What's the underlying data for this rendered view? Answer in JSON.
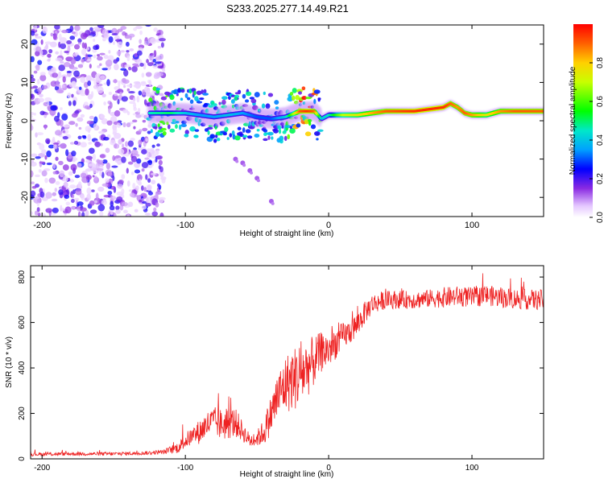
{
  "title": "S233.2025.277.14.49.R21",
  "chart_data": [
    {
      "type": "heatmap",
      "title": "S233.2025.277.14.49.R21",
      "xlabel": "Height of straight line (km)",
      "ylabel": "Frequency (Hz)",
      "xlim": [
        -208,
        150
      ],
      "ylim": [
        -25,
        25
      ],
      "xticks": [
        -200,
        -100,
        0,
        100
      ],
      "yticks": [
        -20,
        -10,
        0,
        10,
        20
      ],
      "colorbar": {
        "label": "Normalized spectral amplitude",
        "range": [
          0,
          1
        ],
        "ticks": [
          0.0,
          0.2,
          0.4,
          0.6,
          0.8
        ]
      },
      "ridge": {
        "x": [
          -125,
          -110,
          -100,
          -90,
          -80,
          -70,
          -60,
          -50,
          -40,
          -30,
          -20,
          -15,
          -10,
          -5,
          0,
          10,
          20,
          40,
          60,
          80,
          85,
          90,
          95,
          100,
          110,
          120,
          130,
          150
        ],
        "freq": [
          2,
          2,
          2,
          1.5,
          1,
          1.5,
          2,
          1,
          0.5,
          1,
          2.5,
          2.5,
          2.5,
          0.5,
          1.5,
          1.5,
          1.5,
          2.5,
          2.5,
          3.5,
          4.5,
          3.5,
          2,
          1.5,
          1.5,
          2.5,
          2.5,
          2.5
        ],
        "amplitude": [
          0.45,
          0.5,
          0.4,
          0.35,
          0.35,
          0.4,
          0.35,
          0.3,
          0.3,
          0.4,
          0.9,
          0.95,
          0.9,
          0.4,
          0.45,
          0.7,
          0.75,
          0.9,
          0.95,
          0.95,
          0.9,
          0.85,
          0.9,
          0.85,
          0.75,
          0.85,
          0.9,
          0.9
        ]
      },
      "noise_region_x": [
        -208,
        -115
      ],
      "scatter_trail": {
        "x": [
          -65,
          -60,
          -55,
          -50,
          -40
        ],
        "freq": [
          -10,
          -11,
          -13,
          -15,
          -21
        ]
      }
    },
    {
      "type": "line",
      "xlabel": "Height of straight line (km)",
      "ylabel": "SNR (10 * v/v)",
      "xlim": [
        -208,
        150
      ],
      "ylim": [
        0,
        850
      ],
      "xticks": [
        -200,
        -100,
        0,
        100
      ],
      "yticks": [
        0,
        200,
        400,
        600,
        800
      ],
      "color": "#ee2222",
      "series": [
        {
          "name": "SNR",
          "x": [
            -208,
            -180,
            -150,
            -130,
            -115,
            -105,
            -100,
            -95,
            -90,
            -85,
            -80,
            -75,
            -70,
            -65,
            -60,
            -55,
            -50,
            -45,
            -40,
            -35,
            -30,
            -25,
            -20,
            -15,
            -10,
            -5,
            0,
            5,
            10,
            15,
            20,
            25,
            30,
            40,
            50,
            60,
            70,
            80,
            90,
            100,
            110,
            120,
            130,
            140,
            150
          ],
          "values": [
            20,
            22,
            22,
            25,
            30,
            50,
            80,
            100,
            120,
            150,
            165,
            150,
            155,
            160,
            120,
            80,
            90,
            120,
            200,
            280,
            330,
            350,
            370,
            400,
            430,
            470,
            480,
            510,
            540,
            560,
            590,
            640,
            680,
            700,
            700,
            700,
            705,
            710,
            715,
            710,
            720,
            710,
            705,
            700,
            700
          ],
          "noise_amplitude": [
            8,
            8,
            8,
            8,
            10,
            25,
            35,
            40,
            55,
            60,
            65,
            70,
            70,
            65,
            45,
            30,
            35,
            60,
            90,
            110,
            130,
            140,
            150,
            130,
            110,
            90,
            80,
            70,
            60,
            55,
            55,
            50,
            45,
            40,
            40,
            40,
            40,
            45,
            45,
            45,
            45,
            45,
            45,
            45,
            45
          ]
        }
      ]
    }
  ]
}
